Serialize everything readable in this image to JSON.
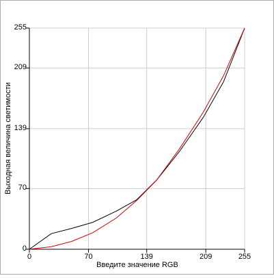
{
  "chart_data": {
    "type": "line",
    "x_label": "Введите значение RGB",
    "y_label": "Выходная величина светимости",
    "x": [
      0,
      26,
      50,
      75,
      103,
      127,
      151,
      178,
      206,
      230,
      255
    ],
    "series": [
      {
        "color": "#000000",
        "values": [
          0,
          18,
          24,
          31,
          44,
          57,
          80,
          113,
          152,
          193,
          255
        ]
      },
      {
        "color": "#cc0000",
        "values": [
          0,
          3,
          9,
          19,
          36,
          56,
          80,
          116,
          158,
          200,
          255
        ]
      }
    ],
    "xlim": [
      0,
      255
    ],
    "ylim": [
      0,
      255
    ],
    "xticks": [
      0,
      70,
      139,
      209,
      255
    ],
    "yticks": [
      0,
      70,
      139,
      209,
      255
    ],
    "grid": true
  }
}
